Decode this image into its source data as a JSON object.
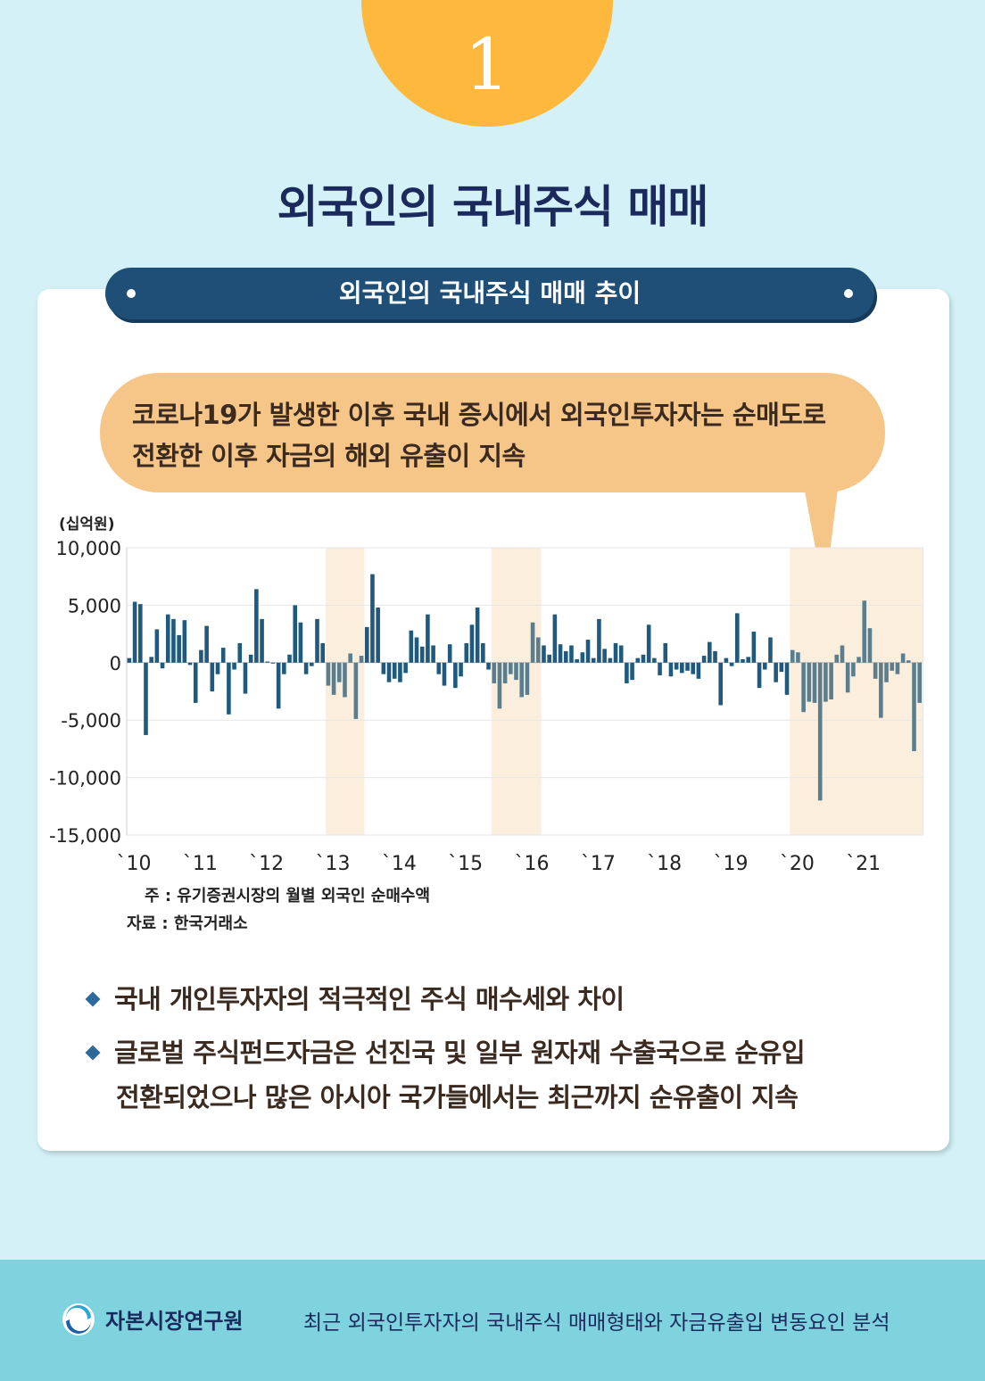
{
  "badge": {
    "number": "1"
  },
  "title": "외국인의 국내주식 매매",
  "banner": {
    "text": "외국인의 국내주식 매매 추이"
  },
  "callout": {
    "line1": "코로나19가 발생한 이후 국내 증시에서 외국인투자자는 순매도로",
    "line2": "전환한 이후 자금의 해외 유출이 지속"
  },
  "chart_data": {
    "type": "bar",
    "unit_label": "(십억원)",
    "ylim": [
      -15000,
      10000
    ],
    "yticks": [
      10000,
      5000,
      0,
      -5000,
      -10000,
      -15000
    ],
    "ytick_labels": [
      "10,000",
      "5,000",
      "0",
      "-5,000",
      "-10,000",
      "-15,000"
    ],
    "xtick_labels": [
      "`10",
      "`11",
      "`12",
      "`13",
      "`14",
      "`15",
      "`16",
      "`17",
      "`18",
      "`19",
      "`20",
      "`21"
    ],
    "x_start_year": 2010,
    "grid": true,
    "shaded_periods": [
      {
        "start_month": 36,
        "end_month": 42
      },
      {
        "start_month": 66,
        "end_month": 74
      },
      {
        "start_month": 120,
        "end_month": 143
      }
    ],
    "values": [
      400,
      5300,
      5100,
      -6300,
      500,
      2900,
      -500,
      4200,
      3800,
      2400,
      3700,
      -200,
      -3500,
      1100,
      3200,
      -2500,
      -1000,
      1300,
      -4500,
      -600,
      1700,
      -2700,
      700,
      6400,
      3800,
      100,
      0,
      -4000,
      -1000,
      700,
      5000,
      3500,
      -1000,
      -300,
      3800,
      1700,
      -2000,
      -2800,
      -1700,
      -3000,
      800,
      -4900,
      600,
      3100,
      7700,
      4800,
      -1000,
      -1700,
      -1400,
      -1700,
      -900,
      2800,
      2200,
      1400,
      4200,
      1500,
      -1000,
      -2000,
      1600,
      -2200,
      -1200,
      1700,
      3300,
      4800,
      1700,
      -600,
      -1800,
      -4000,
      -1800,
      -1000,
      -1500,
      -3000,
      -2800,
      3500,
      2200,
      1500,
      700,
      4200,
      1600,
      1000,
      1500,
      300,
      900,
      2000,
      400,
      3800,
      1200,
      400,
      1700,
      1500,
      -1800,
      -1500,
      400,
      700,
      3300,
      400,
      -1100,
      1700,
      -1200,
      -600,
      -900,
      -700,
      -1000,
      -1400,
      600,
      1800,
      1000,
      -3700,
      400,
      -300,
      4300,
      300,
      500,
      2700,
      -2200,
      -600,
      2200,
      -1700,
      -800,
      -2800,
      1100,
      900,
      -4300,
      -3400,
      -3500,
      -12000,
      -3400,
      -3200,
      700,
      1500,
      -2600,
      -1200,
      500,
      5400,
      3000,
      -1400,
      -4800,
      -1700,
      -700,
      -1000,
      800,
      200,
      -7700,
      -3500
    ]
  },
  "notes": {
    "note": "주 : 유기증권시장의 월별 외국인 순매수액",
    "source": "자료 : 한국거래소"
  },
  "bullets": [
    {
      "line1": "국내 개인투자자의 적극적인 주식 매수세와 차이",
      "line2": ""
    },
    {
      "line1": "글로벌 주식펀드자금은 선진국 및 일부 원자재 수출국으로 순유입",
      "line2": "전환되었으나 많은 아시아 국가들에서는 최근까지 순유출이 지속"
    }
  ],
  "footer": {
    "org": "자본시장연구원",
    "report_title": "최근 외국인투자자의 국내주식 매매형태와 자금유출입 변동요인 분석"
  },
  "colors": {
    "bar": "#1f5a7e",
    "bar_shaded": "#5a7e8e",
    "shade": "#fbeedd",
    "grid": "#e6e6e6"
  }
}
